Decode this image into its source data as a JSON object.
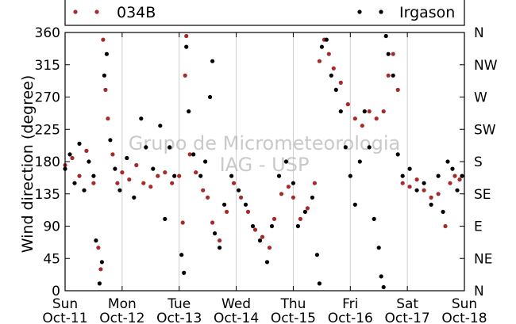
{
  "chart_data": {
    "type": "scatter",
    "ylabel": "Wind direction (degree)",
    "xlabel": "",
    "xlim": [
      "2015-10-11 00:00",
      "2015-10-18 00:00"
    ],
    "ylim": [
      0,
      360
    ],
    "yticks": [
      0,
      45,
      90,
      135,
      180,
      225,
      270,
      315,
      360
    ],
    "right_ticks": [
      "N",
      "NE",
      "E",
      "SE",
      "S",
      "SW",
      "W",
      "NW",
      "N"
    ],
    "xticks": [
      {
        "day": "Sun",
        "date": "Oct-11"
      },
      {
        "day": "Mon",
        "date": "Oct-12"
      },
      {
        "day": "Tue",
        "date": "Oct-13"
      },
      {
        "day": "Wed",
        "date": "Oct-14"
      },
      {
        "day": "Thu",
        "date": "Oct-15"
      },
      {
        "day": "Fri",
        "date": "Oct-16"
      },
      {
        "day": "Sat",
        "date": "Oct-17"
      },
      {
        "day": "Sun",
        "date": "Oct-18"
      }
    ],
    "grid": "vertical",
    "legend_position": "top",
    "watermark": [
      "Grupo de Micrometeorologia",
      "IAG - USP"
    ],
    "series": [
      {
        "name": "034B",
        "color": "#a52a2a",
        "points": [
          [
            "2015-10-11 00:00",
            175
          ],
          [
            "2015-10-11 03:00",
            185
          ],
          [
            "2015-10-11 06:00",
            160
          ],
          [
            "2015-10-11 09:00",
            195
          ],
          [
            "2015-10-11 12:00",
            150
          ],
          [
            "2015-10-11 14:00",
            60
          ],
          [
            "2015-10-11 15:00",
            30
          ],
          [
            "2015-10-11 16:00",
            350
          ],
          [
            "2015-10-11 17:00",
            280
          ],
          [
            "2015-10-11 18:00",
            240
          ],
          [
            "2015-10-11 20:00",
            190
          ],
          [
            "2015-10-11 22:00",
            150
          ],
          [
            "2015-10-12 00:00",
            165
          ],
          [
            "2015-10-12 03:00",
            155
          ],
          [
            "2015-10-12 06:00",
            175
          ],
          [
            "2015-10-12 09:00",
            150
          ],
          [
            "2015-10-12 12:00",
            145
          ],
          [
            "2015-10-12 15:00",
            160
          ],
          [
            "2015-10-12 18:00",
            165
          ],
          [
            "2015-10-12 21:00",
            150
          ],
          [
            "2015-10-13 00:00",
            160
          ],
          [
            "2015-10-13 01:30",
            95
          ],
          [
            "2015-10-13 02:30",
            300
          ],
          [
            "2015-10-13 03:00",
            355
          ],
          [
            "2015-10-13 04:30",
            190
          ],
          [
            "2015-10-13 07:00",
            165
          ],
          [
            "2015-10-13 10:00",
            140
          ],
          [
            "2015-10-13 12:00",
            130
          ],
          [
            "2015-10-13 14:00",
            95
          ],
          [
            "2015-10-13 17:00",
            70
          ],
          [
            "2015-10-13 20:00",
            110
          ],
          [
            "2015-10-13 23:00",
            150
          ],
          [
            "2015-10-14 02:00",
            130
          ],
          [
            "2015-10-14 05:00",
            110
          ],
          [
            "2015-10-14 08:00",
            85
          ],
          [
            "2015-10-14 11:00",
            75
          ],
          [
            "2015-10-14 14:00",
            60
          ],
          [
            "2015-10-14 16:00",
            100
          ],
          [
            "2015-10-14 19:00",
            135
          ],
          [
            "2015-10-14 22:00",
            145
          ],
          [
            "2015-10-15 00:00",
            130
          ],
          [
            "2015-10-15 03:00",
            100
          ],
          [
            "2015-10-15 06:00",
            115
          ],
          [
            "2015-10-15 09:00",
            150
          ],
          [
            "2015-10-15 11:00",
            320
          ],
          [
            "2015-10-15 13:00",
            350
          ],
          [
            "2015-10-15 15:00",
            330
          ],
          [
            "2015-10-15 17:00",
            310
          ],
          [
            "2015-10-15 20:00",
            290
          ],
          [
            "2015-10-15 23:00",
            260
          ],
          [
            "2015-10-16 02:00",
            240
          ],
          [
            "2015-10-16 05:00",
            230
          ],
          [
            "2015-10-16 08:00",
            250
          ],
          [
            "2015-10-16 11:00",
            240
          ],
          [
            "2015-10-16 14:00",
            250
          ],
          [
            "2015-10-16 16:00",
            300
          ],
          [
            "2015-10-16 18:00",
            330
          ],
          [
            "2015-10-16 20:00",
            280
          ],
          [
            "2015-10-16 22:00",
            150
          ],
          [
            "2015-10-17 01:00",
            145
          ],
          [
            "2015-10-17 04:00",
            155
          ],
          [
            "2015-10-17 07:00",
            140
          ],
          [
            "2015-10-17 10:00",
            130
          ],
          [
            "2015-10-17 13:00",
            135
          ],
          [
            "2015-10-17 16:00",
            90
          ],
          [
            "2015-10-17 18:00",
            150
          ],
          [
            "2015-10-17 20:00",
            160
          ],
          [
            "2015-10-17 22:00",
            155
          ]
        ]
      },
      {
        "name": "Irgason",
        "color": "#000000",
        "points": [
          [
            "2015-10-11 00:00",
            170
          ],
          [
            "2015-10-11 02:00",
            190
          ],
          [
            "2015-10-11 04:00",
            150
          ],
          [
            "2015-10-11 06:00",
            205
          ],
          [
            "2015-10-11 08:00",
            140
          ],
          [
            "2015-10-11 10:00",
            180
          ],
          [
            "2015-10-11 12:00",
            160
          ],
          [
            "2015-10-11 13:00",
            70
          ],
          [
            "2015-10-11 14:30",
            10
          ],
          [
            "2015-10-11 15:30",
            40
          ],
          [
            "2015-10-11 16:30",
            300
          ],
          [
            "2015-10-11 17:30",
            330
          ],
          [
            "2015-10-11 19:00",
            210
          ],
          [
            "2015-10-11 21:00",
            170
          ],
          [
            "2015-10-11 23:00",
            140
          ],
          [
            "2015-10-12 02:00",
            185
          ],
          [
            "2015-10-12 05:00",
            130
          ],
          [
            "2015-10-12 08:00",
            240
          ],
          [
            "2015-10-12 10:00",
            200
          ],
          [
            "2015-10-12 13:00",
            170
          ],
          [
            "2015-10-12 16:00",
            230
          ],
          [
            "2015-10-12 18:00",
            100
          ],
          [
            "2015-10-12 20:00",
            200
          ],
          [
            "2015-10-12 22:00",
            160
          ],
          [
            "2015-10-13 01:00",
            50
          ],
          [
            "2015-10-13 02:00",
            25
          ],
          [
            "2015-10-13 03:00",
            340
          ],
          [
            "2015-10-13 04:00",
            250
          ],
          [
            "2015-10-13 06:00",
            190
          ],
          [
            "2015-10-13 09:00",
            160
          ],
          [
            "2015-10-13 11:00",
            180
          ],
          [
            "2015-10-13 13:00",
            270
          ],
          [
            "2015-10-13 14:00",
            320
          ],
          [
            "2015-10-13 15:00",
            80
          ],
          [
            "2015-10-13 17:00",
            60
          ],
          [
            "2015-10-13 19:00",
            120
          ],
          [
            "2015-10-13 22:00",
            160
          ],
          [
            "2015-10-14 01:00",
            140
          ],
          [
            "2015-10-14 04:00",
            120
          ],
          [
            "2015-10-14 07:00",
            90
          ],
          [
            "2015-10-14 10:00",
            70
          ],
          [
            "2015-10-14 13:00",
            40
          ],
          [
            "2015-10-14 15:00",
            90
          ],
          [
            "2015-10-14 18:00",
            160
          ],
          [
            "2015-10-14 21:00",
            180
          ],
          [
            "2015-10-15 00:00",
            150
          ],
          [
            "2015-10-15 02:00",
            90
          ],
          [
            "2015-10-15 05:00",
            110
          ],
          [
            "2015-10-15 08:00",
            130
          ],
          [
            "2015-10-15 10:00",
            50
          ],
          [
            "2015-10-15 11:00",
            10
          ],
          [
            "2015-10-15 12:00",
            340
          ],
          [
            "2015-10-15 14:00",
            350
          ],
          [
            "2015-10-15 16:00",
            300
          ],
          [
            "2015-10-15 18:00",
            280
          ],
          [
            "2015-10-15 20:00",
            250
          ],
          [
            "2015-10-15 22:00",
            200
          ],
          [
            "2015-10-16 00:00",
            160
          ],
          [
            "2015-10-16 02:00",
            120
          ],
          [
            "2015-10-16 04:00",
            180
          ],
          [
            "2015-10-16 06:00",
            250
          ],
          [
            "2015-10-16 08:00",
            200
          ],
          [
            "2015-10-16 10:00",
            100
          ],
          [
            "2015-10-16 12:00",
            60
          ],
          [
            "2015-10-16 13:00",
            20
          ],
          [
            "2015-10-16 14:00",
            5
          ],
          [
            "2015-10-16 15:00",
            355
          ],
          [
            "2015-10-16 16:00",
            330
          ],
          [
            "2015-10-16 18:00",
            300
          ],
          [
            "2015-10-16 20:00",
            190
          ],
          [
            "2015-10-16 22:00",
            160
          ],
          [
            "2015-10-17 01:00",
            170
          ],
          [
            "2015-10-17 04:00",
            140
          ],
          [
            "2015-10-17 07:00",
            150
          ],
          [
            "2015-10-17 10:00",
            120
          ],
          [
            "2015-10-17 13:00",
            160
          ],
          [
            "2015-10-17 15:00",
            110
          ],
          [
            "2015-10-17 17:00",
            180
          ],
          [
            "2015-10-17 19:00",
            170
          ],
          [
            "2015-10-17 21:00",
            140
          ],
          [
            "2015-10-17 23:00",
            160
          ]
        ]
      }
    ]
  }
}
